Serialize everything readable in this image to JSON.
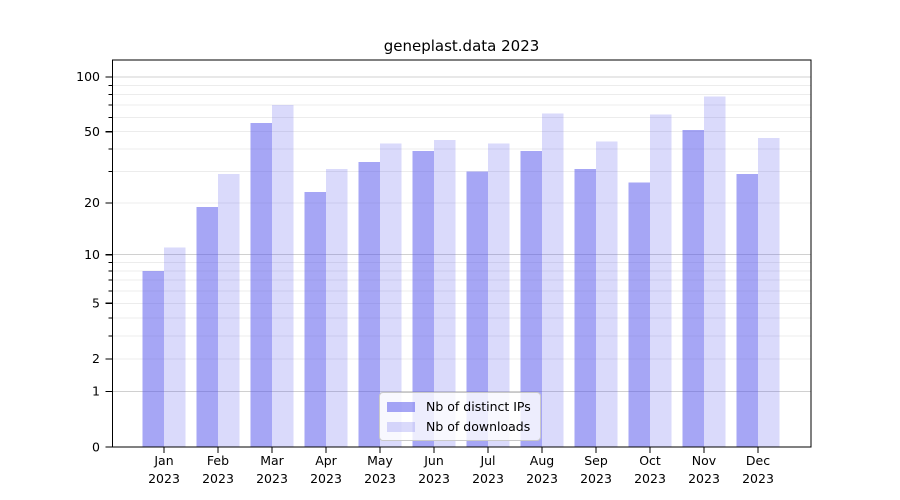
{
  "title": "geneplast.data 2023",
  "chart_data": {
    "type": "bar",
    "title": "geneplast.data 2023",
    "categories": [
      "Jan",
      "Feb",
      "Mar",
      "Apr",
      "May",
      "Jun",
      "Jul",
      "Aug",
      "Sep",
      "Oct",
      "Nov",
      "Dec"
    ],
    "year_label": "2023",
    "series": [
      {
        "name": "Nb of distinct IPs",
        "color": "rgba(80,80,235,0.51)",
        "values": [
          8,
          19,
          56,
          23,
          34,
          39,
          30,
          39,
          31,
          26,
          51,
          29
        ]
      },
      {
        "name": "Nb of downloads",
        "color": "rgba(80,80,235,0.21)",
        "values": [
          11,
          29,
          70,
          31,
          43,
          45,
          43,
          63,
          44,
          62,
          78,
          46
        ]
      }
    ],
    "yaxis": {
      "scale": "log1p",
      "ylim": [
        0,
        100
      ],
      "tick_labels": [
        "100",
        "50",
        "20",
        "10",
        "5",
        "2",
        "1",
        "0"
      ],
      "tick_values": [
        100,
        50,
        20,
        10,
        5,
        2,
        1,
        0
      ],
      "minor_tick_values": [
        90,
        80,
        70,
        60,
        50,
        40,
        30,
        20,
        9,
        8,
        7,
        6,
        5,
        4,
        3,
        2
      ]
    },
    "grid": {
      "major_values": [
        100,
        10,
        1
      ],
      "major_color": "#d0d0d0",
      "minor_color": "#ececec"
    },
    "legend": {
      "position": "lower center"
    },
    "axis_color": "#000000"
  }
}
